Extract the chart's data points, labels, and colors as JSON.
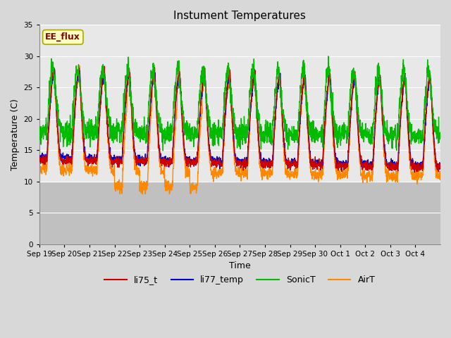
{
  "title": "Instument Temperatures",
  "xlabel": "Time",
  "ylabel": "Temperature (C)",
  "ylim": [
    0,
    35
  ],
  "yticks": [
    0,
    5,
    10,
    15,
    20,
    25,
    30,
    35
  ],
  "num_days": 16,
  "annotation_text": "EE_flux",
  "annotation_color": "#8B0000",
  "annotation_bg": "#FFFFC0",
  "annotation_border": "#AAAA00",
  "colors": {
    "li75_t": "#CC0000",
    "li77_temp": "#0000CC",
    "SonicT": "#00BB00",
    "AirT": "#FF8800"
  },
  "line_width": 1.0,
  "background_color": "#D8D8D8",
  "plot_bg_upper": "#E8E8E8",
  "plot_bg_lower": "#C8C8C8",
  "grid_color": "#FFFFFF",
  "band_threshold": 10,
  "x_ticklabels": [
    "Sep 19",
    "Sep 20",
    "Sep 21",
    "Sep 22",
    "Sep 23",
    "Sep 24",
    "Sep 25",
    "Sep 26",
    "Sep 27",
    "Sep 28",
    "Sep 29",
    "Sep 30",
    "Oct 1",
    "Oct 2",
    "Oct 3",
    "Oct 4"
  ]
}
